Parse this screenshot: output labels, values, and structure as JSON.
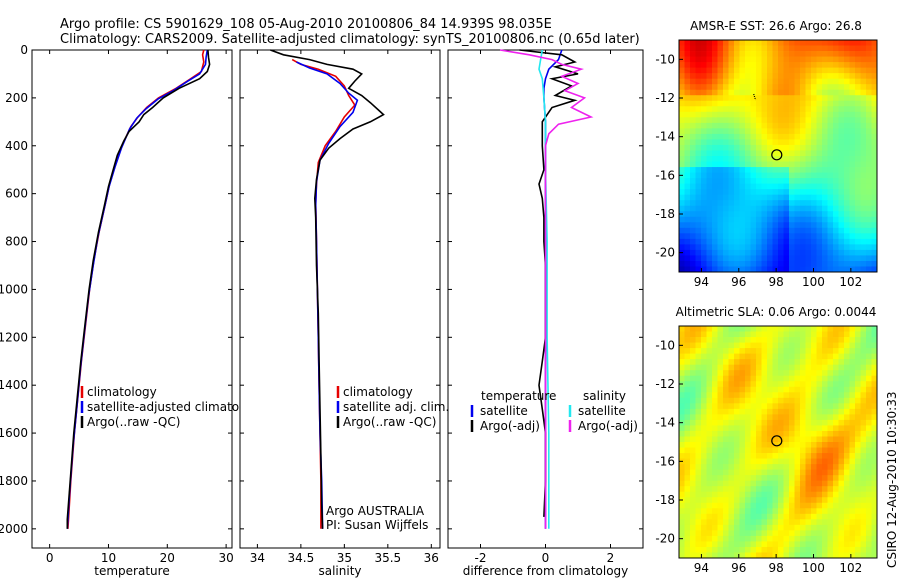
{
  "header": {
    "title_line1": "Argo profile: CS 5901629_108 05-Aug-2010 20100806_84 14.939S 98.035E",
    "title_line2": "Climatology: CARS2009. Satellite-adjusted climatology: synTS_20100806.nc (0.65d later)"
  },
  "sidebar": {
    "stamp": "CSIRO 12-Aug-2010 10:30:33"
  },
  "colors": {
    "red": "#e60000",
    "blue": "#0000ee",
    "black": "#000000",
    "cyan": "#22e8f0",
    "magenta": "#ee22ee"
  },
  "chart_data": [
    {
      "type": "line",
      "xlabel": "temperature",
      "xlim": [
        -3,
        31
      ],
      "ylim": [
        0,
        2080
      ],
      "xticks": [
        0,
        10,
        20,
        30
      ],
      "yticks": [
        0,
        200,
        400,
        600,
        800,
        1000,
        1200,
        1400,
        1600,
        1800,
        2000
      ],
      "legend": [
        "climatology",
        "satellite-adjusted climatology",
        "Argo(..raw -QC)"
      ],
      "series": [
        {
          "name": "climatology",
          "color": "red",
          "points": [
            [
              26.2,
              0
            ],
            [
              26.0,
              20
            ],
            [
              26.2,
              50
            ],
            [
              25.8,
              90
            ],
            [
              24.0,
              120
            ],
            [
              21.5,
              160
            ],
            [
              18.5,
              200
            ],
            [
              16.5,
              240
            ],
            [
              15.0,
              280
            ],
            [
              13.8,
              320
            ],
            [
              12.3,
              400
            ],
            [
              11.2,
              480
            ],
            [
              10.2,
              560
            ],
            [
              9.5,
              640
            ],
            [
              8.4,
              760
            ],
            [
              7.5,
              880
            ],
            [
              6.8,
              1000
            ],
            [
              6.1,
              1150
            ],
            [
              5.4,
              1300
            ],
            [
              4.8,
              1450
            ],
            [
              4.2,
              1600
            ],
            [
              3.6,
              1800
            ],
            [
              3.2,
              1960
            ],
            [
              3.1,
              2000
            ]
          ]
        },
        {
          "name": "satellite-adjusted climatology",
          "color": "blue",
          "points": [
            [
              26.8,
              0
            ],
            [
              26.6,
              30
            ],
            [
              26.5,
              60
            ],
            [
              25.5,
              100
            ],
            [
              23.5,
              130
            ],
            [
              21.0,
              170
            ],
            [
              18.4,
              205
            ],
            [
              16.4,
              245
            ],
            [
              14.8,
              285
            ],
            [
              13.6,
              330
            ],
            [
              12.2,
              410
            ],
            [
              11.1,
              490
            ],
            [
              10.1,
              570
            ],
            [
              9.3,
              660
            ],
            [
              8.2,
              780
            ],
            [
              7.4,
              900
            ],
            [
              6.6,
              1030
            ],
            [
              5.9,
              1180
            ],
            [
              5.2,
              1340
            ],
            [
              4.6,
              1500
            ],
            [
              4.0,
              1650
            ],
            [
              3.4,
              1850
            ],
            [
              3.0,
              2000
            ]
          ]
        },
        {
          "name": "Argo(..raw -QC)",
          "color": "black",
          "points": [
            [
              26.9,
              0
            ],
            [
              27.0,
              30
            ],
            [
              27.2,
              60
            ],
            [
              26.8,
              90
            ],
            [
              25.5,
              120
            ],
            [
              22.0,
              160
            ],
            [
              19.3,
              200
            ],
            [
              17.5,
              240
            ],
            [
              16.0,
              270
            ],
            [
              15.2,
              300
            ],
            [
              13.5,
              340
            ],
            [
              12.6,
              380
            ],
            [
              11.5,
              440
            ],
            [
              10.8,
              500
            ],
            [
              10.0,
              570
            ],
            [
              9.3,
              650
            ],
            [
              8.3,
              760
            ],
            [
              7.4,
              880
            ],
            [
              6.7,
              1000
            ],
            [
              6.0,
              1150
            ],
            [
              5.3,
              1300
            ],
            [
              4.7,
              1450
            ],
            [
              4.1,
              1600
            ],
            [
              3.5,
              1800
            ],
            [
              3.0,
              1960
            ],
            [
              3.0,
              2000
            ]
          ]
        }
      ]
    },
    {
      "type": "line",
      "xlabel": "salinity",
      "xlim": [
        33.8,
        36.1
      ],
      "ylim": [
        0,
        2080
      ],
      "xticks": [
        34,
        34.5,
        35,
        35.5,
        36
      ],
      "yticks": [
        0,
        200,
        400,
        600,
        800,
        1000,
        1200,
        1400,
        1600,
        1800,
        2000
      ],
      "legend": [
        "climatology",
        "satellite adj. clim.",
        "Argo(..raw -QC)"
      ],
      "annotation": [
        "Argo AUSTRALIA",
        "PI: Susan Wijffels"
      ],
      "series": [
        {
          "name": "climatology",
          "color": "red",
          "points": [
            [
              34.4,
              40
            ],
            [
              34.5,
              60
            ],
            [
              34.7,
              80
            ],
            [
              34.9,
              110
            ],
            [
              35.0,
              150
            ],
            [
              35.05,
              190
            ],
            [
              35.12,
              230
            ],
            [
              35.0,
              280
            ],
            [
              34.9,
              340
            ],
            [
              34.78,
              400
            ],
            [
              34.7,
              470
            ],
            [
              34.68,
              560
            ],
            [
              34.67,
              640
            ],
            [
              34.68,
              800
            ],
            [
              34.69,
              1000
            ],
            [
              34.7,
              1200
            ],
            [
              34.71,
              1400
            ],
            [
              34.72,
              1600
            ],
            [
              34.73,
              1800
            ],
            [
              34.73,
              2000
            ]
          ]
        },
        {
          "name": "satellite adj. clim.",
          "color": "blue",
          "points": [
            [
              34.45,
              50
            ],
            [
              34.6,
              75
            ],
            [
              34.8,
              100
            ],
            [
              34.95,
              140
            ],
            [
              35.05,
              180
            ],
            [
              35.15,
              210
            ],
            [
              35.1,
              260
            ],
            [
              34.95,
              320
            ],
            [
              34.82,
              390
            ],
            [
              34.72,
              460
            ],
            [
              34.68,
              550
            ],
            [
              34.67,
              650
            ],
            [
              34.68,
              800
            ],
            [
              34.69,
              1000
            ],
            [
              34.7,
              1200
            ],
            [
              34.71,
              1400
            ],
            [
              34.72,
              1600
            ],
            [
              34.74,
              1800
            ],
            [
              34.75,
              2000
            ]
          ]
        },
        {
          "name": "Argo(..raw -QC)",
          "color": "black",
          "points": [
            [
              34.15,
              0
            ],
            [
              34.3,
              20
            ],
            [
              34.6,
              40
            ],
            [
              34.8,
              60
            ],
            [
              35.1,
              80
            ],
            [
              35.2,
              100
            ],
            [
              35.12,
              130
            ],
            [
              35.05,
              160
            ],
            [
              35.2,
              190
            ],
            [
              35.3,
              220
            ],
            [
              35.45,
              270
            ],
            [
              35.3,
              300
            ],
            [
              35.1,
              330
            ],
            [
              34.95,
              370
            ],
            [
              34.82,
              410
            ],
            [
              34.72,
              460
            ],
            [
              34.68,
              540
            ],
            [
              34.66,
              620
            ],
            [
              34.67,
              700
            ],
            [
              34.68,
              900
            ],
            [
              34.7,
              1100
            ],
            [
              34.71,
              1300
            ],
            [
              34.72,
              1500
            ],
            [
              34.73,
              1700
            ],
            [
              34.74,
              1900
            ],
            [
              34.75,
              2000
            ]
          ]
        }
      ]
    },
    {
      "type": "line",
      "xlabel": "difference from climatology",
      "xlim": [
        -3.0,
        3.0
      ],
      "ylim": [
        0,
        2080
      ],
      "xticks": [
        -2,
        0,
        2
      ],
      "yticks": [
        0,
        200,
        400,
        600,
        800,
        1000,
        1200,
        1400,
        1600,
        1800,
        2000
      ],
      "legend_groups": [
        {
          "heading": "temperature",
          "items": [
            {
              "label": "satellite",
              "color": "blue"
            },
            {
              "label": "Argo(-adj)",
              "color": "black"
            }
          ]
        },
        {
          "heading": "salinity",
          "items": [
            {
              "label": "satellite",
              "color": "cyan"
            },
            {
              "label": "Argo(-adj)",
              "color": "magenta"
            }
          ]
        }
      ],
      "series": [
        {
          "name": "temperature satellite",
          "color": "blue",
          "points": [
            [
              0.5,
              0
            ],
            [
              0.4,
              40
            ],
            [
              0.1,
              80
            ],
            [
              0.0,
              120
            ],
            [
              -0.05,
              160
            ],
            [
              -0.05,
              200
            ],
            [
              0.0,
              300
            ],
            [
              0.0,
              500
            ],
            [
              0.0,
              800
            ],
            [
              0.0,
              1200
            ],
            [
              0.0,
              1600
            ],
            [
              0.0,
              2000
            ]
          ]
        },
        {
          "name": "temperature Argo(-adj)",
          "color": "black",
          "points": [
            [
              -0.8,
              0
            ],
            [
              0.5,
              20
            ],
            [
              0.9,
              50
            ],
            [
              0.3,
              70
            ],
            [
              1.0,
              100
            ],
            [
              0.2,
              120
            ],
            [
              0.8,
              150
            ],
            [
              0.3,
              190
            ],
            [
              0.9,
              210
            ],
            [
              0.2,
              240
            ],
            [
              -0.1,
              300
            ],
            [
              -0.1,
              400
            ],
            [
              -0.05,
              500
            ],
            [
              -0.2,
              560
            ],
            [
              -0.1,
              620
            ],
            [
              -0.05,
              700
            ],
            [
              -0.05,
              800
            ],
            [
              0.0,
              900
            ],
            [
              0.0,
              1000
            ],
            [
              0.0,
              1200
            ],
            [
              -0.1,
              1300
            ],
            [
              -0.2,
              1400
            ],
            [
              -0.1,
              1500
            ],
            [
              0.0,
              1600
            ],
            [
              0.0,
              1800
            ],
            [
              -0.05,
              1950
            ]
          ]
        },
        {
          "name": "salinity satellite",
          "color": "cyan",
          "points": [
            [
              -0.1,
              0
            ],
            [
              -0.15,
              40
            ],
            [
              -0.2,
              80
            ],
            [
              -0.1,
              120
            ],
            [
              -0.05,
              200
            ],
            [
              0.0,
              300
            ],
            [
              0.0,
              500
            ],
            [
              0.05,
              800
            ],
            [
              0.05,
              1200
            ],
            [
              0.1,
              1600
            ],
            [
              0.1,
              2000
            ]
          ]
        },
        {
          "name": "salinity Argo(-adj)",
          "color": "magenta",
          "points": [
            [
              -1.4,
              0
            ],
            [
              -0.5,
              20
            ],
            [
              0.2,
              40
            ],
            [
              0.5,
              60
            ],
            [
              1.1,
              80
            ],
            [
              0.5,
              110
            ],
            [
              1.0,
              140
            ],
            [
              0.6,
              170
            ],
            [
              1.2,
              200
            ],
            [
              0.8,
              240
            ],
            [
              1.4,
              280
            ],
            [
              0.4,
              310
            ],
            [
              0.1,
              350
            ],
            [
              0.0,
              400
            ],
            [
              0.0,
              600
            ],
            [
              0.0,
              1000
            ],
            [
              0.0,
              1400
            ],
            [
              0.0,
              1800
            ],
            [
              0.0,
              2000
            ]
          ]
        }
      ]
    },
    {
      "type": "heatmap",
      "title": "AMSR-E SST: 26.6 Argo: 26.8",
      "xlim": [
        92.8,
        103.4
      ],
      "ylim": [
        -21.0,
        -9.0
      ],
      "xticks": [
        94,
        96,
        98,
        100,
        102
      ],
      "yticks": [
        -10,
        -12,
        -14,
        -16,
        -18,
        -20
      ],
      "marker": {
        "lon": 98.035,
        "lat": -14.939
      },
      "track": [
        [
          96.8,
          -11.8
        ],
        [
          96.9,
          -12.1
        ]
      ]
    },
    {
      "type": "heatmap",
      "title": "Altimetric SLA: 0.06 Argo: 0.0044",
      "xlim": [
        92.8,
        103.4
      ],
      "ylim": [
        -21.0,
        -9.0
      ],
      "xticks": [
        94,
        96,
        98,
        100,
        102
      ],
      "yticks": [
        -10,
        -12,
        -14,
        -16,
        -18,
        -20
      ],
      "marker": {
        "lon": 98.035,
        "lat": -14.939
      },
      "track": [
        [
          96.8,
          -12.1
        ]
      ]
    }
  ]
}
